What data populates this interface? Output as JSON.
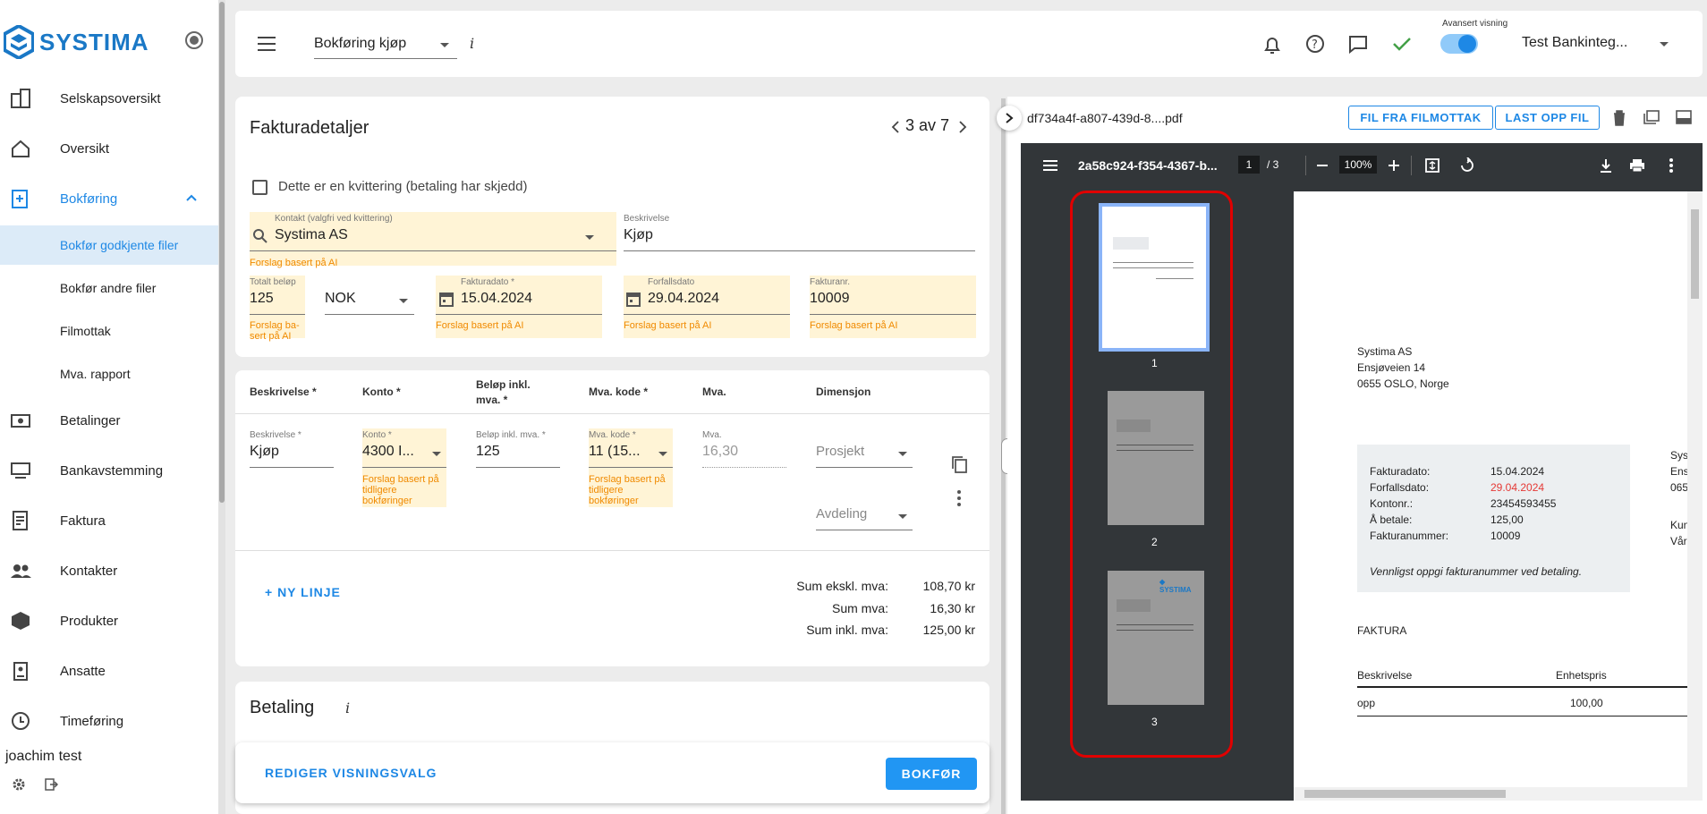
{
  "sidebar": {
    "logo": "SYSTIMA",
    "items": [
      {
        "label": "Selskapsoversikt",
        "icon": "building-icon"
      },
      {
        "label": "Oversikt",
        "icon": "home-icon"
      },
      {
        "label": "Bokføring",
        "icon": "bookkeeping-icon"
      },
      {
        "label": "Betalinger",
        "icon": "payments-icon"
      },
      {
        "label": "Bankavstemming",
        "icon": "bank-reconcile-icon"
      },
      {
        "label": "Faktura",
        "icon": "invoice-icon"
      },
      {
        "label": "Kontakter",
        "icon": "contacts-icon"
      },
      {
        "label": "Produkter",
        "icon": "products-icon"
      },
      {
        "label": "Ansatte",
        "icon": "employees-icon"
      },
      {
        "label": "Timeføring",
        "icon": "clock-icon"
      }
    ],
    "subitems": [
      "Bokfør godkjente filer",
      "Bokfør andre filer",
      "Filmottak",
      "Mva. rapport"
    ],
    "user": "joachim test"
  },
  "topbar": {
    "mode_select": "Bokføring kjøp",
    "info": "i",
    "advanced_label": "Avansert visning",
    "account": "Test Bankinteg..."
  },
  "invoice": {
    "title": "Fakturadetaljer",
    "pager": "3 av 7",
    "receipt_label": "Dette er en kvittering (betaling har skjedd)",
    "contact_label": "Kontakt (valgfri ved kvittering)",
    "contact_value": "Systima AS",
    "description_label": "Beskrivelse",
    "description_value": "Kjøp",
    "ai_hint": "Forslag basert på AI",
    "ai_hint_wrapped": "Forslag ba-\nsert på AI",
    "amount_label": "Totalt beløp",
    "amount_value": "125",
    "currency": "NOK",
    "invoice_date_label": "Fakturadato *",
    "invoice_date": "15.04.2024",
    "due_date_label": "Forfallsdato",
    "due_date": "29.04.2024",
    "invoice_no_label": "Fakturanr.",
    "invoice_no": "10009"
  },
  "lines": {
    "headers": [
      "Beskrivelse *",
      "Konto *",
      "Beløp inkl. mva. *",
      "Mva. kode *",
      "Mva.",
      "Dimensjon"
    ],
    "row": {
      "desc_label": "Beskrivelse *",
      "desc": "Kjøp",
      "account_label": "Konto *",
      "account": "4300 I...",
      "amount_label": "Beløp inkl. mva. *",
      "amount": "125",
      "vat_code_label": "Mva. kode *",
      "vat_code": "11 (15...",
      "vat_label": "Mva.",
      "vat": "16,30",
      "project": "Prosjekt",
      "department": "Avdeling",
      "hint": "Forslag basert på tidligere bokføringer"
    },
    "new_line": "+ NY LINJE",
    "sum_ex_label": "Sum ekskl. mva:",
    "sum_ex": "108,70 kr",
    "sum_vat_label": "Sum mva:",
    "sum_vat": "16,30 kr",
    "sum_inc_label": "Sum inkl. mva:",
    "sum_inc": "125,00 kr"
  },
  "payment": {
    "title": "Betaling",
    "info": "i"
  },
  "footer": {
    "edit_view": "REDIGER VISNINGSVALG",
    "post": "BOKFØR"
  },
  "file": {
    "name": "df734a4f-a807-439d-8....pdf",
    "from_inbox": "FIL FRA FILMOTTAK",
    "upload": "LAST OPP FIL"
  },
  "pdf": {
    "title": "2a58c924-f354-4367-b...",
    "page_current": "1",
    "page_total": "/ 3",
    "zoom": "100%",
    "thumbnails": [
      "1",
      "2",
      "3"
    ],
    "sender_name": "Systima AS",
    "sender_street": "Ensjøveien 14",
    "sender_city": "0655 OSLO, Norge",
    "info": [
      {
        "k": "Fakturadato:",
        "v": "15.04.2024"
      },
      {
        "k": "Forfallsdato:",
        "v": "29.04.2024"
      },
      {
        "k": "Kontonr.:",
        "v": "23454593455"
      },
      {
        "k": "Å betale:",
        "v": "125,00"
      },
      {
        "k": "Fakturanummer:",
        "v": "10009"
      }
    ],
    "note": "Vennligst oppgi fakturanummer ved betaling.",
    "right_partial": [
      "Syst",
      "Ensj",
      "065",
      "Kun",
      "Vår"
    ],
    "doc_title": "FAKTURA",
    "table_h1": "Beskrivelse",
    "table_h2": "Enhetspris",
    "row_desc": "opp",
    "row_price": "100,00",
    "due_color": "#e53935"
  }
}
